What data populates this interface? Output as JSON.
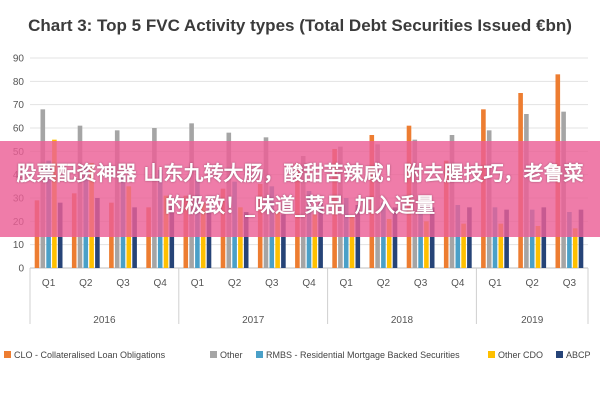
{
  "chart_data": {
    "type": "bar",
    "title": "Chart 3: Top 5 FVC Activity types (Total Debt Securities Issued €bn)",
    "ylim": [
      0,
      90
    ],
    "yticks": [
      "0",
      "10",
      "20",
      "30",
      "40",
      "50",
      "60",
      "70",
      "80",
      "90"
    ],
    "grid": true,
    "legend_position": "bottom",
    "categories": [
      "Q1",
      "Q2",
      "Q3",
      "Q4",
      "Q1",
      "Q2",
      "Q3",
      "Q4",
      "Q1",
      "Q2",
      "Q3",
      "Q4",
      "Q1",
      "Q2",
      "Q3"
    ],
    "years": [
      {
        "label": "2016",
        "span": 4
      },
      {
        "label": "2017",
        "span": 4
      },
      {
        "label": "2018",
        "span": 4
      },
      {
        "label": "2019",
        "span": 3
      }
    ],
    "series": [
      {
        "name": "CLO - Collateralised Loan Obligations",
        "color": "#ed7d31",
        "values": [
          29,
          32,
          28,
          26,
          31,
          34,
          36,
          45,
          51,
          57,
          61,
          46,
          68,
          75,
          83
        ]
      },
      {
        "name": "Other",
        "color": "#a5a5a5",
        "values": [
          68,
          61,
          59,
          60,
          62,
          58,
          56,
          48,
          52,
          53,
          55,
          57,
          59,
          66,
          67
        ]
      },
      {
        "name": "RMBS - Residential Mortgage Backed Securities",
        "color": "#4aa0c8",
        "values": [
          46,
          44,
          40,
          42,
          38,
          37,
          35,
          33,
          30,
          28,
          27,
          27,
          26,
          25,
          24
        ]
      },
      {
        "name": "Other CDO",
        "color": "#ffc000",
        "values": [
          55,
          45,
          35,
          31,
          28,
          26,
          24,
          23,
          22,
          21,
          20,
          19,
          19,
          18,
          17
        ]
      },
      {
        "name": "ABCP",
        "color": "#264478",
        "values": [
          28,
          30,
          26,
          27,
          25,
          24,
          23,
          28,
          27,
          26,
          26,
          26,
          25,
          26,
          25
        ]
      }
    ]
  },
  "banner": {
    "text": "股票配资神器 山东九转大肠，酸甜苦辣咸！附去腥技巧，老鲁菜的极致！_味道_菜品_加入适量"
  }
}
